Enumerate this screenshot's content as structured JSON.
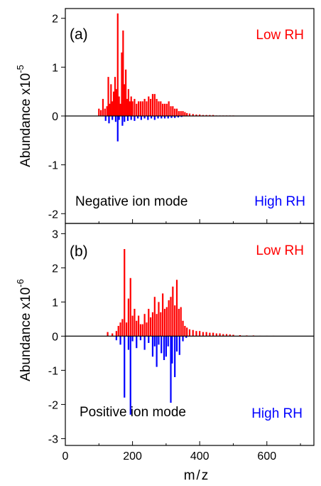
{
  "colors": {
    "low": "#ff0000",
    "high": "#0000ff",
    "axis": "#000000"
  },
  "x_axis": {
    "label": "m/z",
    "range": [
      0,
      740
    ],
    "ticks": [
      0,
      200,
      400,
      600
    ]
  },
  "chart_data": [
    {
      "type": "bar",
      "panel_label": "(a)",
      "mode_label": "Negative ion mode",
      "ylabel": "Abundance x10",
      "ylabel_exponent": "-5",
      "ylim": [
        -2.2,
        2.2
      ],
      "yticks": [
        -2,
        -1,
        0,
        1,
        2
      ],
      "legend": [
        {
          "name": "Low RH",
          "color": "#ff0000",
          "position": "top-right"
        },
        {
          "name": "High RH",
          "color": "#0000ff",
          "position": "bottom-right"
        }
      ],
      "series": [
        {
          "name": "Low RH",
          "x": [
            100,
            106,
            112,
            118,
            124,
            128,
            132,
            136,
            140,
            144,
            148,
            152,
            156,
            160,
            164,
            168,
            172,
            176,
            180,
            184,
            188,
            192,
            196,
            200,
            206,
            212,
            218,
            224,
            230,
            236,
            242,
            248,
            254,
            260,
            266,
            272,
            278,
            284,
            290,
            296,
            302,
            308,
            314,
            320,
            326,
            332,
            338,
            344,
            350,
            356,
            362,
            370,
            380,
            390,
            400,
            410,
            420,
            430,
            440,
            450,
            460,
            470,
            480,
            490,
            500
          ],
          "values": [
            0.15,
            0.12,
            0.35,
            0.15,
            0.2,
            0.8,
            0.25,
            0.65,
            0.3,
            0.5,
            0.8,
            0.55,
            2.1,
            0.4,
            0.25,
            1.3,
            1.75,
            0.65,
            0.95,
            0.35,
            0.55,
            0.3,
            0.4,
            0.3,
            0.35,
            0.25,
            0.3,
            0.3,
            0.3,
            0.35,
            0.3,
            0.4,
            0.35,
            0.45,
            0.45,
            0.35,
            0.3,
            0.3,
            0.25,
            0.25,
            0.25,
            0.3,
            0.2,
            0.2,
            0.15,
            0.15,
            0.1,
            0.1,
            0.1,
            0.08,
            0.06,
            0.05,
            0.04,
            0.03,
            0.03,
            0.02,
            0.02,
            0.02,
            0.02,
            0.01,
            0.01,
            0.01,
            0.01,
            0.01,
            0.01
          ]
        },
        {
          "name": "High RH",
          "x": [
            120,
            130,
            140,
            150,
            156,
            160,
            170,
            176,
            186,
            196,
            206,
            216,
            226,
            236,
            246,
            256,
            266,
            276,
            286,
            296,
            306,
            316,
            326,
            336,
            346
          ],
          "values": [
            -0.1,
            -0.15,
            -0.08,
            -0.12,
            -0.52,
            -0.08,
            -0.2,
            -0.12,
            -0.1,
            -0.08,
            -0.1,
            -0.05,
            -0.08,
            -0.05,
            -0.08,
            -0.05,
            -0.08,
            -0.05,
            -0.05,
            -0.05,
            -0.05,
            -0.04,
            -0.04,
            -0.03,
            -0.02
          ]
        }
      ]
    },
    {
      "type": "bar",
      "panel_label": "(b)",
      "mode_label": "Positive ion mode",
      "ylabel": "Abundance x10",
      "ylabel_exponent": "-6",
      "ylim": [
        -3.2,
        3.3
      ],
      "yticks": [
        -3,
        -2,
        -1,
        0,
        1,
        2,
        3
      ],
      "legend": [
        {
          "name": "Low RH",
          "color": "#ff0000",
          "position": "top-right"
        },
        {
          "name": "High RH",
          "color": "#0000ff",
          "position": "bottom-right"
        }
      ],
      "series": [
        {
          "name": "Low RH",
          "x": [
            126,
            140,
            152,
            158,
            164,
            170,
            176,
            182,
            188,
            194,
            200,
            206,
            212,
            218,
            224,
            230,
            236,
            242,
            248,
            254,
            260,
            266,
            272,
            278,
            284,
            290,
            296,
            302,
            308,
            314,
            320,
            326,
            332,
            338,
            344,
            350,
            356,
            362,
            370,
            380,
            390,
            400,
            410,
            420,
            430,
            440,
            450,
            460,
            470,
            480,
            490,
            500,
            520,
            540,
            560,
            580,
            600,
            620
          ],
          "values": [
            0.12,
            0.08,
            0.15,
            0.3,
            0.4,
            0.5,
            2.55,
            0.4,
            1.1,
            1.7,
            0.6,
            0.8,
            0.45,
            0.6,
            0.35,
            0.35,
            0.65,
            0.4,
            0.8,
            0.55,
            0.7,
            1.15,
            0.65,
            1.0,
            0.7,
            1.25,
            0.8,
            0.85,
            1.05,
            1.15,
            1.45,
            0.9,
            1.65,
            0.8,
            0.85,
            0.45,
            0.3,
            0.25,
            0.2,
            0.18,
            0.15,
            0.15,
            0.12,
            0.12,
            0.1,
            0.1,
            0.08,
            0.08,
            0.06,
            0.06,
            0.05,
            0.04,
            0.03,
            0.02,
            0.02,
            0.01,
            0.01,
            0.01
          ]
        },
        {
          "name": "High RH",
          "x": [
            152,
            164,
            176,
            188,
            194,
            200,
            212,
            224,
            236,
            248,
            260,
            266,
            272,
            278,
            286,
            294,
            300,
            306,
            314,
            318,
            326,
            332,
            340,
            350,
            360
          ],
          "values": [
            -0.12,
            -0.25,
            -1.8,
            -0.4,
            -2.3,
            -0.15,
            -0.35,
            -0.12,
            -0.4,
            -0.2,
            -0.6,
            -0.3,
            -0.9,
            -0.25,
            -0.5,
            -0.7,
            -0.6,
            -0.3,
            -1.95,
            -0.8,
            -1.2,
            -0.45,
            -0.55,
            -0.15,
            -0.05
          ]
        }
      ]
    }
  ]
}
